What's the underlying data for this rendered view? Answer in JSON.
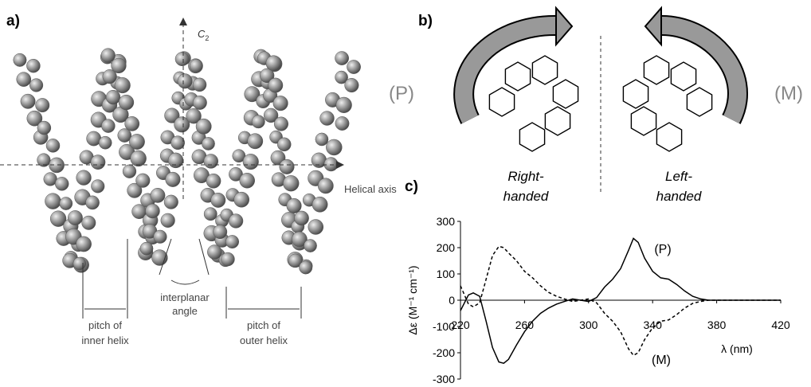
{
  "panel_a": {
    "label": "a)",
    "c2": {
      "symbol": "C",
      "subscript": "2"
    },
    "helical_axis": "Helical axis",
    "interplanar_angle": [
      "interplanar",
      "angle"
    ],
    "pitch_inner": [
      "pitch of",
      "inner helix"
    ],
    "pitch_outer": [
      "pitch of",
      "outer helix"
    ]
  },
  "panel_b": {
    "label": "b)",
    "left_symbol": "(P)",
    "right_symbol": "(M)",
    "left_caption": [
      "Right-",
      "handed"
    ],
    "right_caption": [
      "Left-",
      "handed"
    ]
  },
  "panel_c": {
    "label": "c)"
  },
  "chart_data": {
    "type": "line",
    "x_label": "λ (nm)",
    "y_label": "Δε (M⁻¹ cm⁻¹)",
    "x": [
      220,
      225,
      228,
      232,
      236,
      240,
      244,
      247,
      250,
      255,
      260,
      265,
      270,
      275,
      280,
      285,
      290,
      295,
      300,
      305,
      310,
      315,
      320,
      325,
      328,
      331,
      335,
      340,
      345,
      350,
      355,
      360,
      365,
      370,
      375,
      380,
      400,
      420
    ],
    "series": [
      {
        "name": "(P)",
        "color": "#000000",
        "dash": false,
        "values": [
          -40,
          20,
          28,
          15,
          -80,
          -180,
          -235,
          -240,
          -225,
          -170,
          -120,
          -80,
          -50,
          -30,
          -15,
          -5,
          5,
          0,
          -5,
          10,
          50,
          80,
          120,
          190,
          235,
          220,
          160,
          110,
          85,
          80,
          60,
          35,
          15,
          5,
          0,
          0,
          0,
          0
        ]
      },
      {
        "name": "(M)",
        "color": "#000000",
        "dash": true,
        "values": [
          55,
          -15,
          -25,
          -10,
          80,
          170,
          205,
          200,
          180,
          150,
          110,
          85,
          55,
          30,
          15,
          5,
          -5,
          0,
          5,
          -10,
          -50,
          -80,
          -120,
          -185,
          -210,
          -200,
          -150,
          -105,
          -80,
          -75,
          -55,
          -30,
          -12,
          -5,
          0,
          0,
          0,
          0
        ]
      }
    ],
    "xlim": [
      220,
      420
    ],
    "xticks": [
      220,
      260,
      300,
      340,
      380,
      420
    ],
    "ylim": [
      -300,
      300
    ],
    "yticks": [
      -300,
      -200,
      -100,
      0,
      100,
      200,
      300
    ]
  }
}
